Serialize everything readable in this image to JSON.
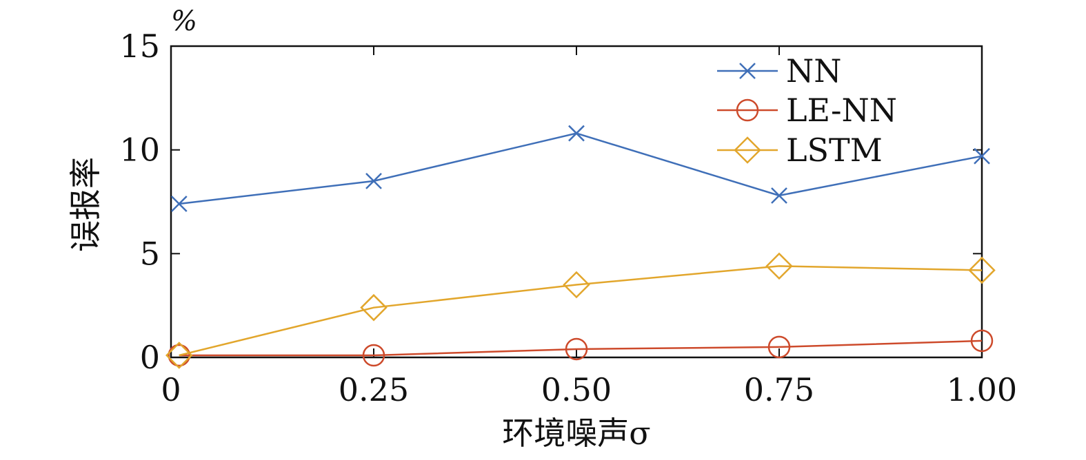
{
  "chart_data": {
    "type": "line",
    "title": "",
    "xlabel": "环境噪声σ",
    "ylabel": "误报率",
    "y_unit": "%",
    "xlim": [
      0,
      1.0
    ],
    "ylim": [
      0,
      15
    ],
    "x_ticks": [
      0,
      0.25,
      0.5,
      0.75,
      1.0
    ],
    "x_tick_labels": [
      "0",
      "0.25",
      "0.50",
      "0.75",
      "1.00"
    ],
    "y_ticks": [
      0,
      5,
      10,
      15
    ],
    "y_tick_labels": [
      "0",
      "5",
      "10",
      "15"
    ],
    "grid": false,
    "legend_position": "top-right",
    "x": [
      0.01,
      0.25,
      0.5,
      0.75,
      1.0
    ],
    "series": [
      {
        "name": "NN",
        "color": "#3F6FB8",
        "marker": "x",
        "values": [
          7.4,
          8.5,
          10.8,
          7.8,
          9.7
        ]
      },
      {
        "name": "LE-NN",
        "color": "#CD4A2B",
        "marker": "circle",
        "values": [
          0.1,
          0.1,
          0.4,
          0.5,
          0.8
        ]
      },
      {
        "name": "LSTM",
        "color": "#E2A62C",
        "marker": "diamond",
        "values": [
          0.1,
          2.4,
          3.5,
          4.4,
          4.2
        ]
      }
    ]
  }
}
